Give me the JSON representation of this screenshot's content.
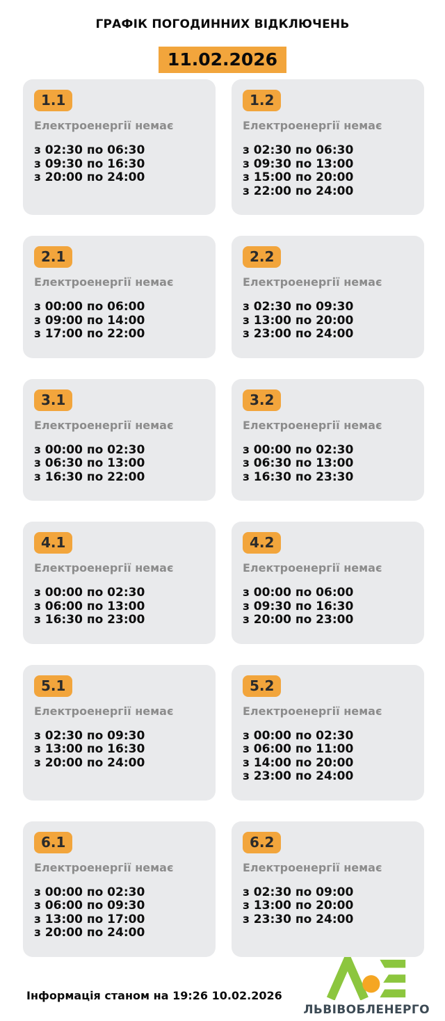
{
  "header": {
    "title": "ГРАФІК ПОГОДИННИХ ВІДКЛЮЧЕНЬ",
    "date": "11.02.2026"
  },
  "cards": [
    {
      "group": "1.1",
      "status": "Електроенергії немає",
      "times": [
        "з 02:30 по 06:30",
        "з 09:30 по 16:30",
        "з 20:00 по 24:00"
      ]
    },
    {
      "group": "1.2",
      "status": "Електроенергії немає",
      "times": [
        "з 02:30 по 06:30",
        "з 09:30 по 13:00",
        "з 15:00 по 20:00",
        "з 22:00 по 24:00"
      ]
    },
    {
      "group": "2.1",
      "status": "Електроенергії немає",
      "times": [
        "з 00:00 по 06:00",
        "з 09:00 по 14:00",
        "з 17:00 по 22:00"
      ]
    },
    {
      "group": "2.2",
      "status": "Електроенергії немає",
      "times": [
        "з 02:30 по 09:30",
        "з 13:00 по 20:00",
        "з 23:00 по 24:00"
      ]
    },
    {
      "group": "3.1",
      "status": "Електроенергії немає",
      "times": [
        "з 00:00 по 02:30",
        "з 06:30 по 13:00",
        "з 16:30 по 22:00"
      ]
    },
    {
      "group": "3.2",
      "status": "Електроенергії немає",
      "times": [
        "з 00:00 по 02:30",
        "з 06:30 по 13:00",
        "з 16:30 по 23:30"
      ]
    },
    {
      "group": "4.1",
      "status": "Електроенергії немає",
      "times": [
        "з 00:00 по 02:30",
        "з 06:00 по 13:00",
        "з 16:30 по 23:00"
      ]
    },
    {
      "group": "4.2",
      "status": "Електроенергії немає",
      "times": [
        "з 00:00 по 06:00",
        "з 09:30 по 16:30",
        "з 20:00 по 23:00"
      ]
    },
    {
      "group": "5.1",
      "status": "Електроенергії немає",
      "times": [
        "з 02:30 по 09:30",
        "з 13:00 по 16:30",
        "з 20:00 по 24:00"
      ]
    },
    {
      "group": "5.2",
      "status": "Електроенергії немає",
      "times": [
        "з 00:00 по 02:30",
        "з 06:00 по 11:00",
        "з 14:00 по 20:00",
        "з 23:00 по 24:00"
      ]
    },
    {
      "group": "6.1",
      "status": "Електроенергії немає",
      "times": [
        "з 00:00 по 02:30",
        "з 06:00 по 09:30",
        "з 13:00 по 17:00",
        "з 20:00 по 24:00"
      ]
    },
    {
      "group": "6.2",
      "status": "Електроенергії немає",
      "times": [
        "з 02:30 по 09:00",
        "з 13:00 по 20:00",
        "з 23:30 по 24:00"
      ]
    }
  ],
  "footer": {
    "info": "Інформація станом на 19:26 10.02.2026",
    "brand": "ЛЬВІВОБЛЕНЕРГО"
  },
  "icons": {
    "logo": "lviv-oblenergo-logo"
  },
  "colors": {
    "accent_orange": "#F2A53C",
    "card_bg": "#E9EAEC",
    "muted_text": "#8C8C8C",
    "time_text": "#0D0D0D",
    "brand_green": "#8CC63E",
    "brand_orange": "#F5A623",
    "brand_dark": "#3C4A54"
  }
}
